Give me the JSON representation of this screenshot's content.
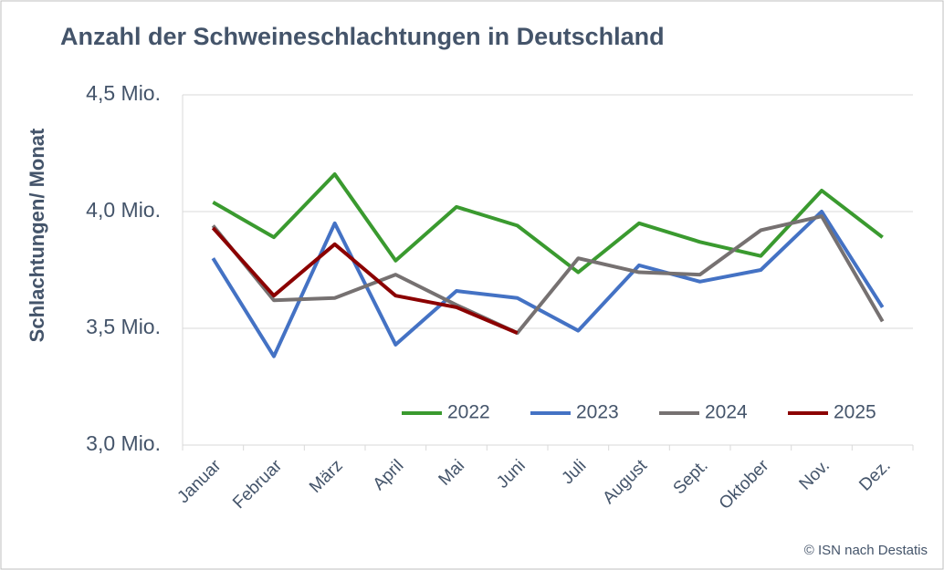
{
  "chart_data": {
    "type": "line",
    "title": "Anzahl der Schweineschlachtungen in Deutschland",
    "y_label": "Schlachtungen/ Monat",
    "source": "© ISN nach Destatis",
    "categories": [
      "Januar",
      "Februar",
      "März",
      "April",
      "Mai",
      "Juni",
      "Juli",
      "August",
      "Sept.",
      "Oktober",
      "Nov.",
      "Dez."
    ],
    "series": [
      {
        "name": "2022",
        "color": "#3a9a2f",
        "values": [
          4.04,
          3.89,
          4.16,
          3.79,
          4.02,
          3.94,
          3.74,
          3.95,
          3.87,
          3.81,
          4.09,
          3.89
        ]
      },
      {
        "name": "2023",
        "color": "#4472c4",
        "values": [
          3.8,
          3.38,
          3.95,
          3.43,
          3.66,
          3.63,
          3.49,
          3.77,
          3.7,
          3.75,
          4.0,
          3.59
        ]
      },
      {
        "name": "2024",
        "color": "#767171",
        "values": [
          3.94,
          3.62,
          3.63,
          3.73,
          3.6,
          3.48,
          3.8,
          3.74,
          3.73,
          3.92,
          3.98,
          3.53
        ]
      },
      {
        "name": "2025",
        "color": "#8b0000",
        "values": [
          3.93,
          3.64,
          3.86,
          3.64,
          3.59,
          3.48,
          null,
          null,
          null,
          null,
          null,
          null
        ]
      }
    ],
    "ylim": [
      3.0,
      4.5
    ],
    "yticks": [
      {
        "value": 3.0,
        "label": "3,0 Mio."
      },
      {
        "value": 3.5,
        "label": "3,5 Mio."
      },
      {
        "value": 4.0,
        "label": "4,0 Mio."
      },
      {
        "value": 4.5,
        "label": "4,5 Mio."
      }
    ],
    "grid": true,
    "legend": "bottom-right"
  }
}
